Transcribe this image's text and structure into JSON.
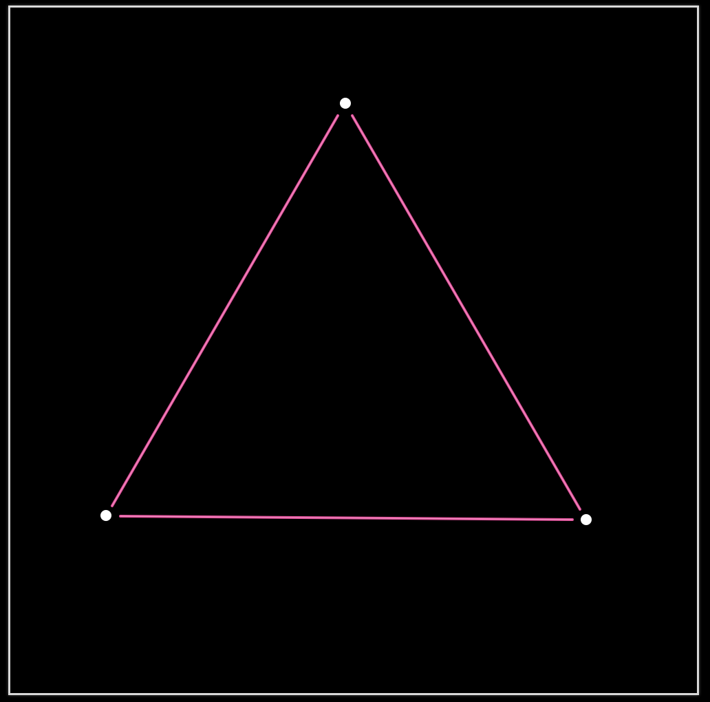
{
  "diagram": {
    "shape": "triangle",
    "edge_color": "#e0509a",
    "edge_highlight": "#f7a6cf",
    "vertex_color": "#ffffff",
    "background": "#000000",
    "frame_color": "#d9d9d9",
    "vertices": [
      "top-vertex",
      "bottom-left-vertex",
      "bottom-right-vertex"
    ],
    "edges": [
      [
        "top-vertex",
        "bottom-left-vertex"
      ],
      [
        "top-vertex",
        "bottom-right-vertex"
      ],
      [
        "bottom-left-vertex",
        "bottom-right-vertex"
      ]
    ]
  }
}
